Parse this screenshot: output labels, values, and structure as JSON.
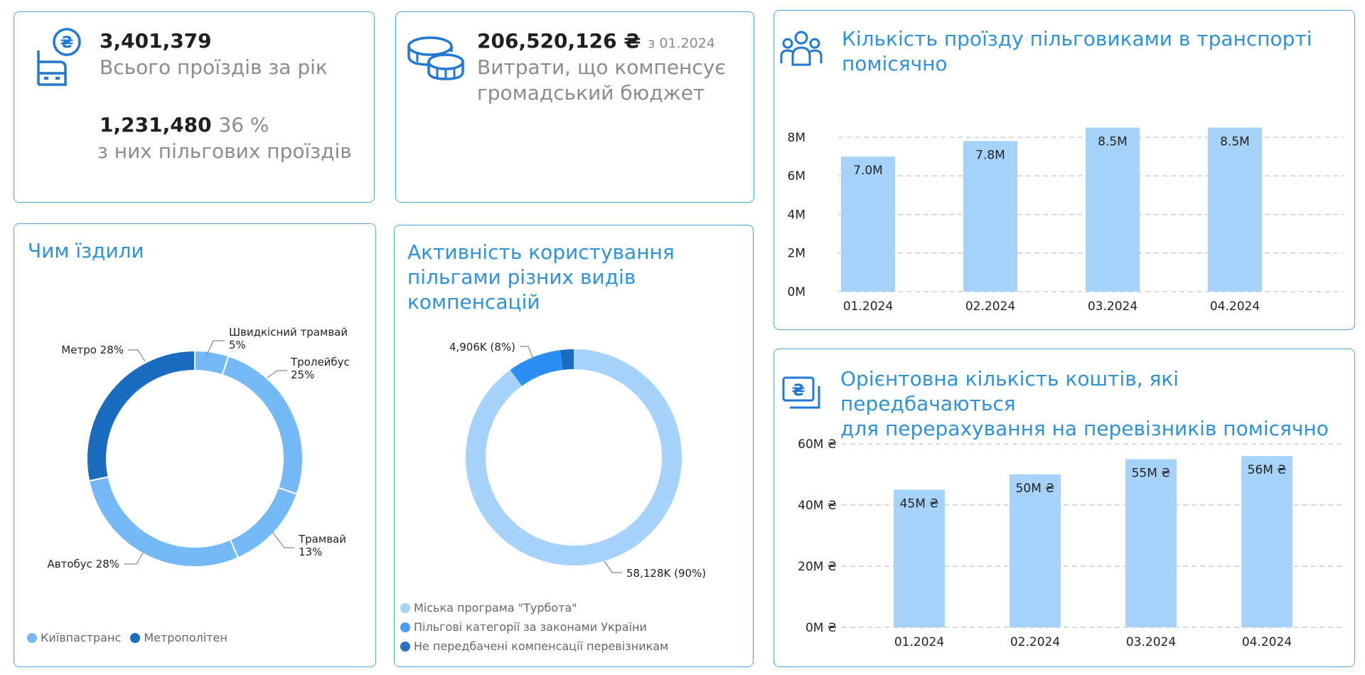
{
  "kpi_trips": {
    "total_value": "3,401,379",
    "total_label": "Всього проїздів за рік",
    "benefit_value": "1,231,480",
    "benefit_pct": "36 %",
    "benefit_label": "з них пільгових проїздів",
    "icon": "bus-coin-icon"
  },
  "kpi_costs": {
    "value": "206,520,126 ₴",
    "date": "з 01.2024",
    "label_line1": "Витрати, що компенсує",
    "label_line2": "громадський бюджет",
    "icon": "coins-icon"
  },
  "colors": {
    "accent": "#2f92d8",
    "border": "#5aa2d8",
    "bar": "#a6d2fc",
    "light_blue": "#a6d2fc",
    "mid_blue": "#76b9f7",
    "bright_blue": "#2b8ef5",
    "dark_blue": "#1a6cc1",
    "grid": "#c4c4c4"
  },
  "chart_data": [
    {
      "id": "monthly_trips",
      "type": "bar",
      "title": "Кількість проїзду пільговиками в транспорті помісячно",
      "title_line1": "Кількість проїзду пільговиками в транспорті",
      "title_line2": "помісячно",
      "categories": [
        "01.2024",
        "02.2024",
        "03.2024",
        "04.2024"
      ],
      "values": [
        7.0,
        7.8,
        8.5,
        8.5
      ],
      "data_labels": [
        "7.0M",
        "7.8M",
        "8.5M",
        "8.5M"
      ],
      "yticks": [
        0,
        2,
        4,
        6,
        8
      ],
      "ytick_labels": [
        "0M",
        "2M",
        "4M",
        "6M",
        "8M"
      ],
      "ylim": [
        0,
        8.7
      ],
      "grid": true
    },
    {
      "id": "monthly_funds",
      "type": "bar",
      "title": "Орієнтовна кількість коштів, які передбачаються для перерахування на перевізників помісячно",
      "title_line1": "Орієнтовна кількість коштів, які передбачаються",
      "title_line2": "для перерахування на перевізників помісячно",
      "categories": [
        "01.2024",
        "02.2024",
        "03.2024",
        "04.2024"
      ],
      "values": [
        45,
        50,
        55,
        56
      ],
      "data_labels": [
        "45M ₴",
        "50M ₴",
        "55M ₴",
        "56M ₴"
      ],
      "yticks": [
        0,
        20,
        40,
        60
      ],
      "ytick_labels": [
        "0M ₴",
        "20M ₴",
        "40M ₴",
        "60M ₴"
      ],
      "ylim": [
        0,
        60
      ],
      "grid": true
    },
    {
      "id": "transport_modes",
      "type": "pie",
      "title": "Чим їздили",
      "slices": [
        {
          "label_line1": "Швидкісний трамвай",
          "label_line2": "5%",
          "value": 5,
          "group": 0
        },
        {
          "label_line1": "Тролейбус",
          "label_line2": "25%",
          "value": 25,
          "group": 0
        },
        {
          "label_line1": "Трамвай",
          "label_line2": "13%",
          "value": 13,
          "group": 0
        },
        {
          "label_line1": "Автобус 28%",
          "label_line2": "",
          "value": 28,
          "group": 0
        },
        {
          "label_line1": "Метро 28%",
          "label_line2": "",
          "value": 28,
          "group": 1
        }
      ],
      "legend": [
        {
          "name": "Київпастранс",
          "color": "#76b9f7"
        },
        {
          "name": "Метрополітен",
          "color": "#1a6cc1"
        }
      ],
      "legend_placement": "bottom-left"
    },
    {
      "id": "compensation_types",
      "type": "pie",
      "title": "Активність користування пільгами різних видів компенсацій",
      "title_line1": "Активність користування",
      "title_line2": "пільгами різних видів",
      "title_line3": "компенсацій",
      "slices": [
        {
          "name": "Міська програма \"Турбота\"",
          "value": 90,
          "label": "58,128K (90%)",
          "color": "#a6d2fc"
        },
        {
          "name": "Пільгові категорії за законами України",
          "value": 8,
          "label": "4,906K (8%)",
          "color": "#2b8ef5"
        },
        {
          "name": "Не передбачені компенсації перевізникам",
          "value": 2,
          "label": "",
          "color": "#1a6cc1"
        }
      ],
      "legend_placement": "bottom-left"
    }
  ]
}
